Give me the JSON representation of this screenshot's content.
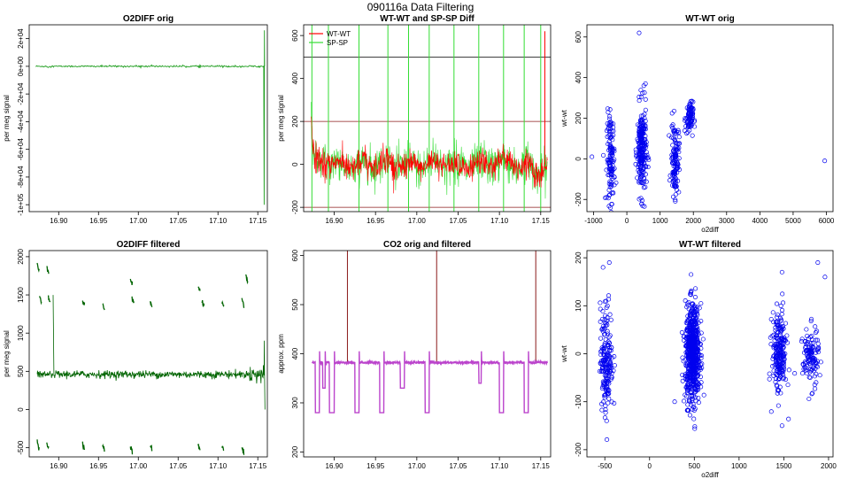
{
  "suptitle": "090116a   Data Filtering",
  "chart_data": [
    {
      "id": "p1",
      "type": "line",
      "title": "O2DIFF orig",
      "xlabel": "",
      "ylabel": "per meg signal",
      "xlim": [
        16.863,
        17.162
      ],
      "ylim": [
        -105000,
        30000
      ],
      "xticks": [
        16.9,
        16.95,
        17.0,
        17.05,
        17.1,
        17.15
      ],
      "xtick_labels": [
        "16.90",
        "16.95",
        "17.00",
        "17.05",
        "17.10",
        "17.15"
      ],
      "yticks": [
        20000,
        0,
        -20000,
        -40000,
        -60000,
        -80000,
        -100000
      ],
      "ytick_labels": [
        "2e+04",
        "0e+00",
        "-2e+04",
        "-4e+04",
        "-6e+04",
        "-8e+04",
        "-1e+05"
      ],
      "series": [
        {
          "color": "#1f9e1f",
          "baseline": 0,
          "spike_x": 17.158,
          "spike_min": -100000,
          "spike_max": 26000
        }
      ]
    },
    {
      "id": "p2",
      "type": "line",
      "title": "WT-WT and SP-SP Diff",
      "xlabel": "",
      "ylabel": "per meg signal",
      "xlim": [
        16.863,
        17.162
      ],
      "ylim": [
        -220,
        650
      ],
      "xticks": [
        16.9,
        16.95,
        17.0,
        17.05,
        17.1,
        17.15
      ],
      "xtick_labels": [
        "16.90",
        "16.95",
        "17.00",
        "17.05",
        "17.10",
        "17.15"
      ],
      "yticks": [
        -200,
        0,
        200,
        400,
        600
      ],
      "ytick_labels": [
        "-200",
        "0",
        "200",
        "400",
        "600"
      ],
      "hlines": [
        {
          "y": 500,
          "color": "#000000"
        },
        {
          "y": 200,
          "color": "#8b1a1a"
        },
        {
          "y": -200,
          "color": "#8b1a1a"
        }
      ],
      "legend": {
        "position": "top-left",
        "entries": [
          {
            "name": "WT-WT",
            "color": "#ff0000"
          },
          {
            "name": "SP-SP",
            "color": "#33dd33"
          }
        ]
      },
      "green_spikes": [
        16.873,
        16.893,
        16.93,
        16.965,
        16.99,
        17.015,
        17.045,
        17.075,
        17.105,
        17.13,
        17.15
      ],
      "red_spike_x": 17.155,
      "red_spike_max": 620
    },
    {
      "id": "p3",
      "type": "scatter",
      "title": "WT-WT orig",
      "xlabel": "o2diff",
      "ylabel": "wt-wt",
      "xlim": [
        -1200,
        6200
      ],
      "ylim": [
        -260,
        660
      ],
      "xticks": [
        -1000,
        0,
        1000,
        2000,
        3000,
        4000,
        5000,
        6000
      ],
      "xtick_labels": [
        "-1000",
        "0",
        "1000",
        "2000",
        "3000",
        "4000",
        "5000",
        "6000"
      ],
      "yticks": [
        -200,
        0,
        200,
        400,
        600
      ],
      "ytick_labels": [
        "-200",
        "0",
        "200",
        "400",
        "600"
      ],
      "color": "#0000ee",
      "clusters": [
        {
          "cx": -480,
          "cy": 0,
          "sx": 60,
          "sy": 110,
          "n": 130
        },
        {
          "cx": 450,
          "cy": 40,
          "sx": 70,
          "sy": 110,
          "n": 240
        },
        {
          "cx": 1450,
          "cy": 0,
          "sx": 60,
          "sy": 90,
          "n": 120
        },
        {
          "cx": 1880,
          "cy": 200,
          "sx": 55,
          "sy": 40,
          "n": 80
        }
      ],
      "outliers": [
        [
          370,
          620
        ],
        [
          5950,
          -10
        ],
        [
          -1050,
          10
        ],
        [
          560,
          370
        ]
      ]
    },
    {
      "id": "p4",
      "type": "line",
      "title": "O2DIFF filtered",
      "xlabel": "",
      "ylabel": "per meg signal",
      "xlim": [
        16.863,
        17.162
      ],
      "ylim": [
        -620,
        2080
      ],
      "xticks": [
        16.9,
        16.95,
        17.0,
        17.05,
        17.1,
        17.15
      ],
      "xtick_labels": [
        "16.90",
        "16.95",
        "17.00",
        "17.05",
        "17.10",
        "17.15"
      ],
      "yticks": [
        -500,
        0,
        500,
        1000,
        1500,
        2000
      ],
      "ytick_labels": [
        "-500",
        "0",
        "500",
        "1000",
        "1500",
        "2000"
      ],
      "color": "#006400",
      "baseline": 460,
      "segments_high": [
        [
          16.873,
          1900
        ],
        [
          16.876,
          1500
        ],
        [
          16.885,
          1870
        ],
        [
          16.887,
          1480
        ],
        [
          16.93,
          1420
        ],
        [
          16.955,
          1400
        ],
        [
          16.99,
          1700
        ],
        [
          16.992,
          1460
        ],
        [
          17.015,
          1420
        ],
        [
          17.075,
          1620
        ],
        [
          17.08,
          1400
        ],
        [
          17.105,
          1420
        ],
        [
          17.13,
          1450
        ],
        [
          17.135,
          1760
        ]
      ],
      "segments_low": [
        [
          16.873,
          -420
        ],
        [
          16.885,
          -430
        ],
        [
          16.93,
          -450
        ],
        [
          16.955,
          -460
        ],
        [
          16.99,
          -490
        ],
        [
          17.015,
          -460
        ],
        [
          17.075,
          -460
        ],
        [
          17.105,
          -470
        ],
        [
          17.13,
          -500
        ]
      ]
    },
    {
      "id": "p5",
      "type": "line",
      "title": "CO2 orig and filtered",
      "xlabel": "",
      "ylabel": "approx. ppm",
      "xlim": [
        16.863,
        17.162
      ],
      "ylim": [
        190,
        610
      ],
      "xticks": [
        16.9,
        16.95,
        17.0,
        17.05,
        17.1,
        17.15
      ],
      "xtick_labels": [
        "16.90",
        "16.95",
        "17.00",
        "17.05",
        "17.10",
        "17.15"
      ],
      "yticks": [
        200,
        300,
        400,
        500,
        600
      ],
      "ytick_labels": [
        "200",
        "300",
        "400",
        "500",
        "600"
      ],
      "orig_color": "#8b1a1a",
      "filtered_color": "#bb44cc",
      "baseline": 382,
      "red_spikes": [
        16.916,
        17.024,
        17.144
      ],
      "dips": [
        [
          16.877,
          16.882,
          280
        ],
        [
          16.886,
          16.889,
          330
        ],
        [
          16.894,
          16.9,
          280
        ],
        [
          16.925,
          16.93,
          280
        ],
        [
          16.955,
          16.96,
          280
        ],
        [
          16.98,
          16.985,
          330
        ],
        [
          17.01,
          17.015,
          280
        ],
        [
          17.075,
          17.078,
          340
        ],
        [
          17.1,
          17.105,
          280
        ],
        [
          17.13,
          17.135,
          280
        ]
      ],
      "bumps": [
        [
          16.878,
          410
        ],
        [
          16.888,
          405
        ],
        [
          16.896,
          415
        ],
        [
          17.02,
          410
        ],
        [
          17.14,
          400
        ]
      ]
    },
    {
      "id": "p6",
      "type": "scatter",
      "title": "WT-WT filtered",
      "xlabel": "o2diff",
      "ylabel": "wt-wt",
      "xlim": [
        -700,
        2050
      ],
      "ylim": [
        -215,
        215
      ],
      "xticks": [
        -500,
        0,
        500,
        1000,
        1500,
        2000
      ],
      "xtick_labels": [
        "-500",
        "0",
        "500",
        "1000",
        "1500",
        "2000"
      ],
      "yticks": [
        -200,
        -100,
        0,
        100,
        200
      ],
      "ytick_labels": [
        "-200",
        "-100",
        "0",
        "100",
        "200"
      ],
      "color": "#0000ee",
      "clusters": [
        {
          "cx": -480,
          "cy": -10,
          "sx": 35,
          "sy": 55,
          "n": 180
        },
        {
          "cx": 480,
          "cy": 0,
          "sx": 40,
          "sy": 50,
          "n": 650
        },
        {
          "cx": 1450,
          "cy": 0,
          "sx": 40,
          "sy": 45,
          "n": 220
        },
        {
          "cx": 1800,
          "cy": -10,
          "sx": 45,
          "sy": 30,
          "n": 120
        }
      ],
      "outliers": [
        [
          -520,
          180
        ],
        [
          -450,
          190
        ],
        [
          1480,
          170
        ],
        [
          1880,
          190
        ],
        [
          1960,
          160
        ],
        [
          1480,
          -150
        ],
        [
          -480,
          -140
        ],
        [
          280,
          -100
        ]
      ]
    }
  ]
}
